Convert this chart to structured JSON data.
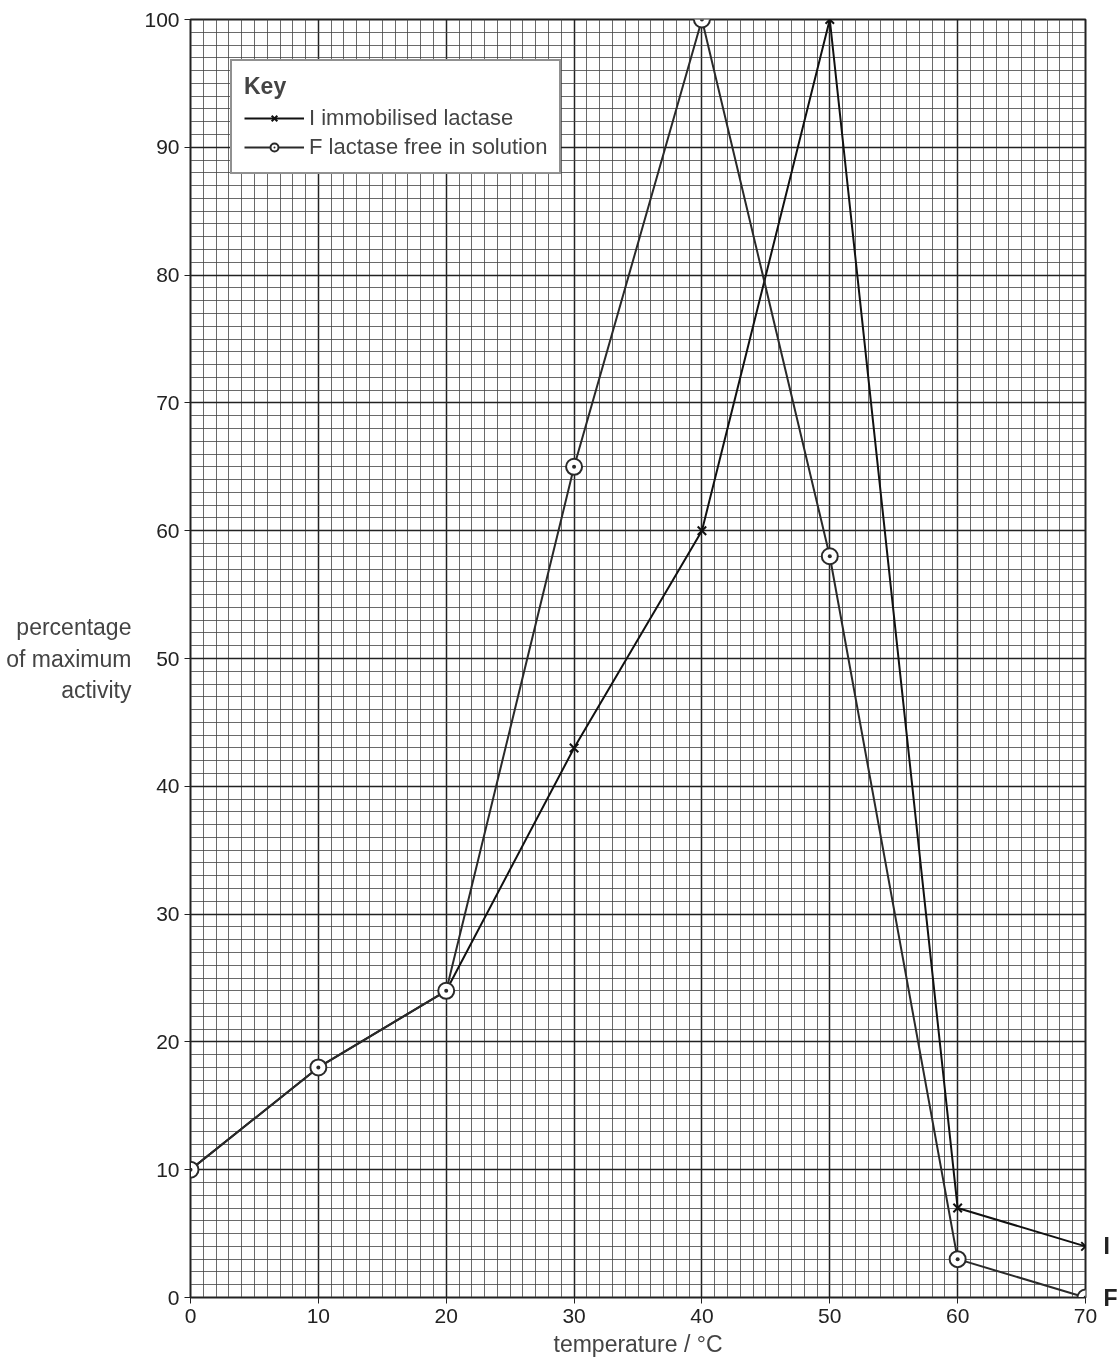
{
  "chart_data": {
    "type": "line",
    "xlabel": "temperature / °C",
    "ylabel": "percentage of maximum activity",
    "legend_title": "Key",
    "x": [
      0,
      10,
      20,
      30,
      40,
      50,
      60,
      70
    ],
    "series": [
      {
        "name": "I immobilised lactase",
        "color": "#111111",
        "marker": "cross",
        "values": [
          10,
          18,
          24,
          43,
          60,
          100,
          7,
          4
        ]
      },
      {
        "name": "F lactase free in solution",
        "color": "#2a2a2a",
        "marker": "circle",
        "values": [
          10,
          18,
          24,
          65,
          100,
          58,
          3,
          0
        ]
      }
    ],
    "annotations": [
      {
        "text": "I",
        "x": 70,
        "y": 4
      },
      {
        "text": "F",
        "x": 70,
        "y": 0
      }
    ],
    "xlim": [
      0,
      70
    ],
    "ylim": [
      0,
      100
    ],
    "xticks": [
      0,
      10,
      20,
      30,
      40,
      50,
      60,
      70
    ],
    "yticks": [
      0,
      10,
      20,
      30,
      40,
      50,
      60,
      70,
      80,
      90,
      100
    ],
    "grid": true,
    "legend": "top left",
    "line_style": "solid"
  }
}
